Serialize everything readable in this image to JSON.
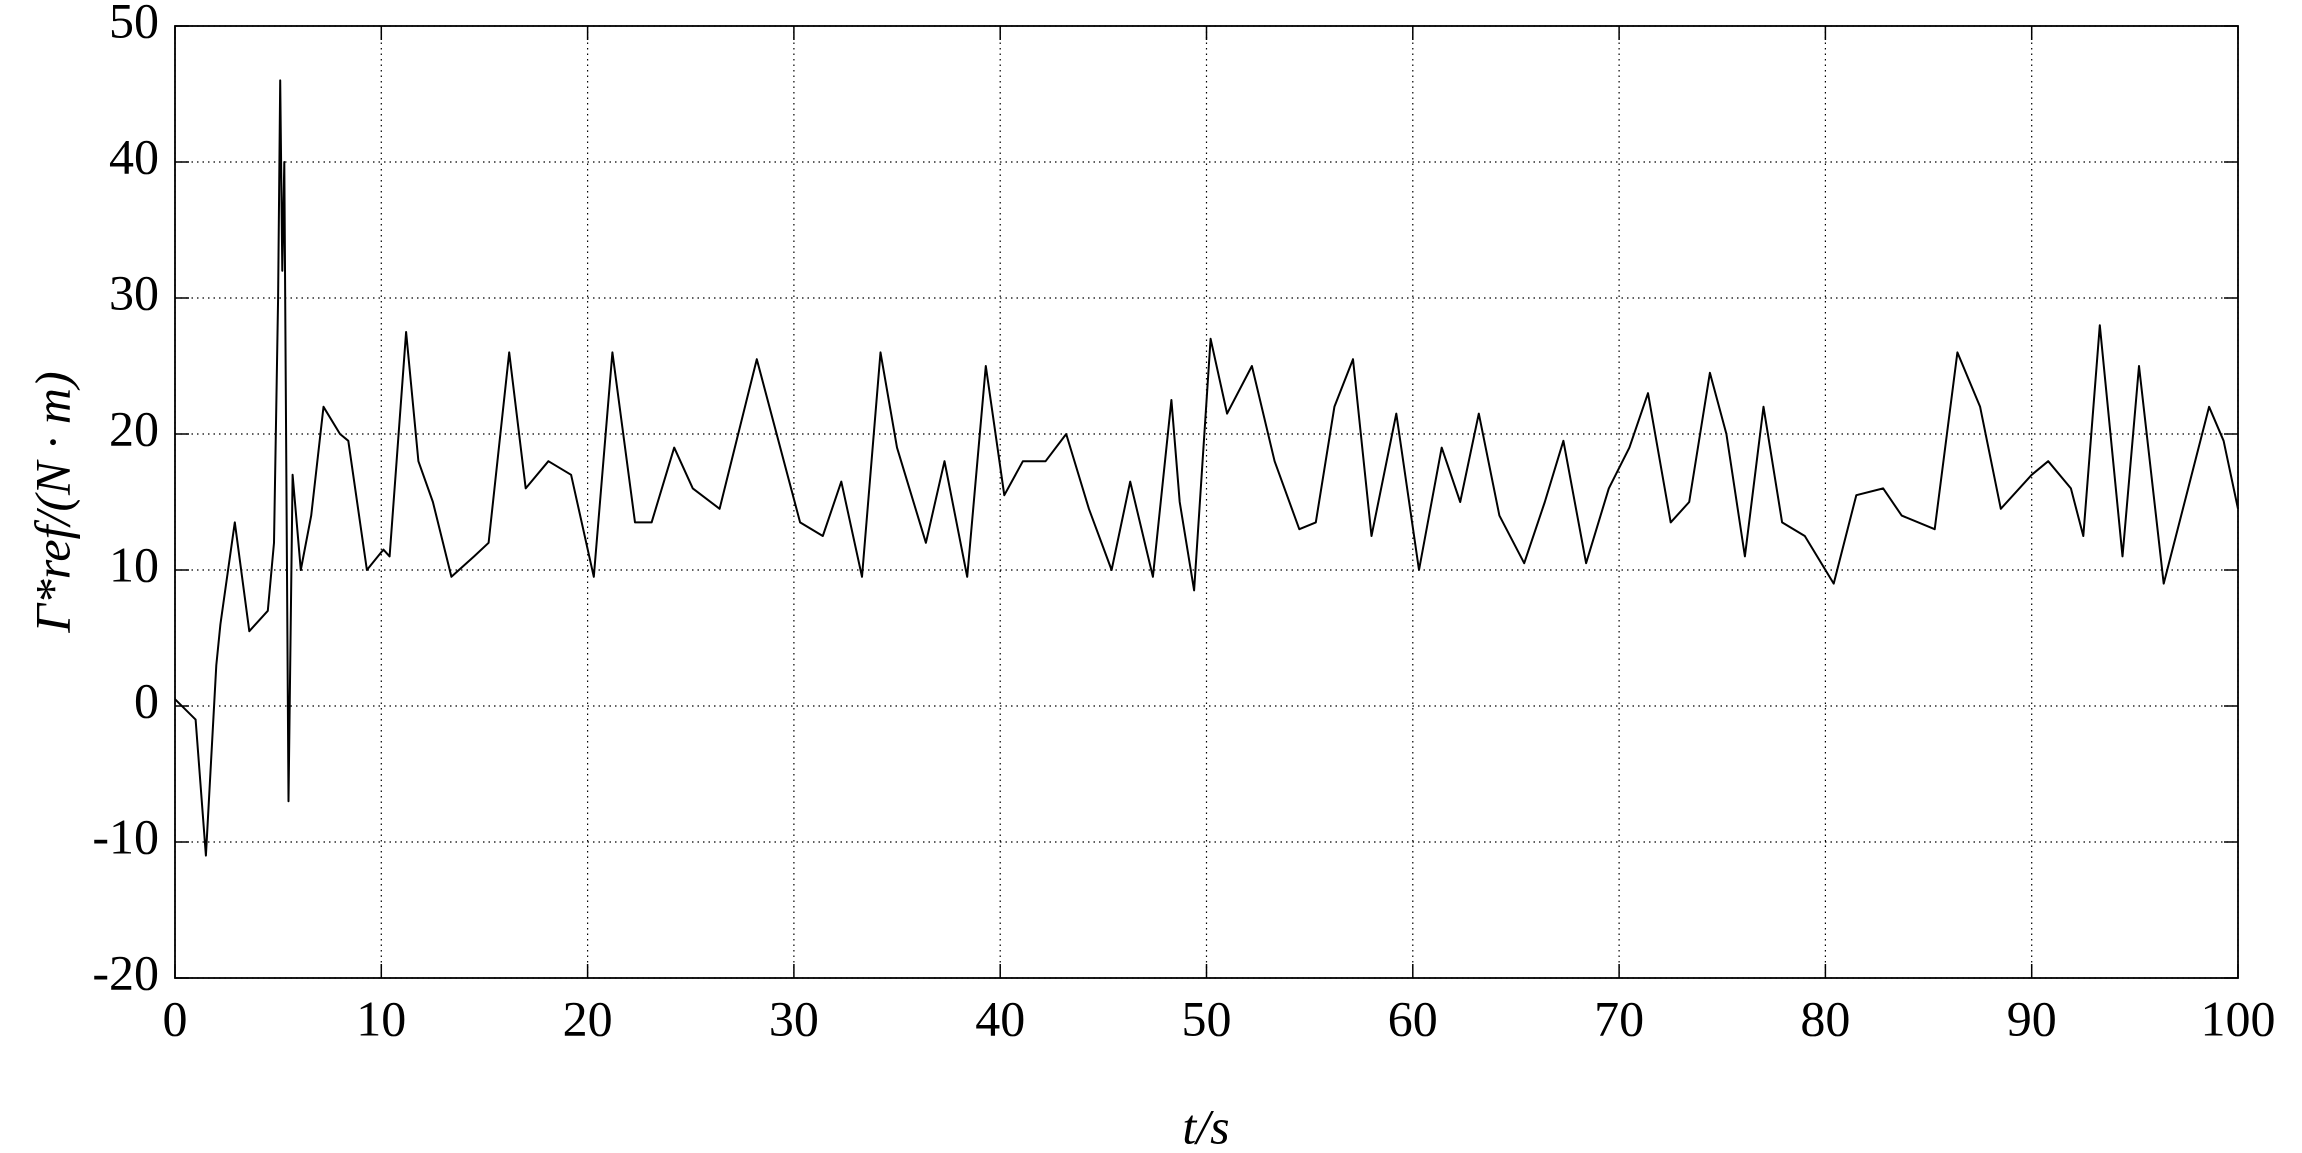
{
  "chart_data": {
    "type": "line",
    "xlabel": "t/s",
    "ylabel": "Γ*ref/(N · m)",
    "xlim": [
      0,
      100
    ],
    "ylim": [
      -20,
      50
    ],
    "xticks": [
      0,
      10,
      20,
      30,
      40,
      50,
      60,
      70,
      80,
      90,
      100
    ],
    "yticks": [
      -20,
      -10,
      0,
      10,
      20,
      30,
      40,
      50
    ],
    "grid": true,
    "series": [
      {
        "color": "#000000",
        "x": [
          0,
          1.0,
          1.5,
          2.0,
          2.2,
          2.9,
          3.6,
          4.5,
          4.8,
          5.0,
          5.1,
          5.2,
          5.3,
          5.5,
          5.7,
          6.1,
          6.6,
          7.2,
          8.0,
          8.4,
          9.3,
          10.1,
          10.4,
          11.2,
          11.8,
          12.5,
          13.4,
          14.5,
          15.2,
          16.2,
          17.0,
          18.1,
          19.2,
          20.3,
          21.2,
          22.3,
          23.1,
          24.2,
          25.1,
          26.4,
          28.2,
          30.3,
          31.4,
          32.3,
          33.3,
          34.2,
          35.0,
          36.4,
          37.3,
          38.4,
          39.3,
          40.2,
          41.1,
          42.2,
          43.2,
          44.3,
          45.4,
          46.3,
          47.4,
          48.3,
          48.7,
          49.4,
          50.2,
          51.0,
          52.2,
          53.3,
          54.5,
          55.3,
          56.2,
          57.1,
          58.0,
          59.2,
          60.3,
          61.4,
          62.3,
          63.2,
          64.2,
          65.4,
          66.4,
          67.3,
          68.4,
          69.5,
          70.5,
          71.4,
          72.5,
          73.4,
          74.4,
          75.2,
          76.1,
          77.0,
          77.9,
          79.0,
          80.4,
          81.5,
          82.8,
          83.7,
          85.3,
          86.4,
          87.5,
          88.5,
          90.0,
          90.8,
          91.9,
          92.5,
          93.3,
          94.4,
          95.2,
          96.4,
          97.5,
          98.6,
          99.3,
          100
        ],
        "values": [
          0.5,
          -1,
          -11,
          3,
          6,
          13.5,
          5.5,
          7,
          12,
          30,
          46,
          32,
          40,
          -7,
          17,
          10,
          14,
          22,
          20,
          19.5,
          10,
          11.5,
          11,
          27.5,
          18,
          15,
          9.5,
          11,
          12,
          26,
          16,
          18,
          17,
          9.5,
          26,
          13.5,
          13.5,
          19,
          16,
          14.5,
          25.5,
          13.5,
          12.5,
          16.5,
          9.5,
          26,
          19,
          12,
          18,
          9.5,
          25,
          15.5,
          18,
          18,
          20,
          14.5,
          10,
          16.5,
          9.5,
          22.5,
          15,
          8.5,
          27,
          21.5,
          25,
          18,
          13,
          13.5,
          22,
          25.5,
          12.5,
          21.5,
          10,
          19,
          15,
          21.5,
          14,
          10.5,
          15,
          19.5,
          10.5,
          16,
          19,
          23,
          13.5,
          15,
          24.5,
          20,
          11,
          22,
          13.5,
          12.5,
          9,
          15.5,
          16,
          14,
          13,
          26,
          22,
          14.5,
          17,
          18,
          16,
          12.5,
          28,
          11,
          25,
          9,
          15.5,
          22,
          19.5,
          14.5
        ]
      }
    ]
  }
}
